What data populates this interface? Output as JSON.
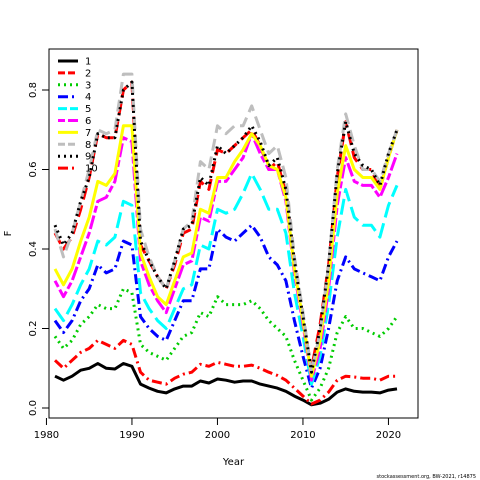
{
  "chart_data": {
    "type": "line",
    "title": "",
    "xlabel": "Year",
    "ylabel": "F",
    "xlim": [
      1980,
      2021
    ],
    "ylim": [
      0,
      0.85
    ],
    "x_ticks": [
      1980,
      1990,
      2000,
      2010,
      2020
    ],
    "y_ticks": [
      0.0,
      0.2,
      0.4,
      0.6,
      0.8
    ],
    "x_tick_labels": [
      "1980",
      "1990",
      "2000",
      "2010",
      "2020"
    ],
    "y_tick_labels": [
      "0.0",
      "0.2",
      "0.4",
      "0.6",
      "0.8"
    ],
    "grid": false,
    "legend_position": "top-left",
    "credit": "stockassessment.org, BW-2021, r14875",
    "x": [
      1981,
      1982,
      1983,
      1984,
      1985,
      1986,
      1987,
      1988,
      1989,
      1990,
      1991,
      1992,
      1993,
      1994,
      1995,
      1996,
      1997,
      1998,
      1999,
      2000,
      2001,
      2002,
      2003,
      2004,
      2005,
      2006,
      2007,
      2008,
      2009,
      2010,
      2011,
      2012,
      2013,
      2014,
      2015,
      2016,
      2017,
      2018,
      2019,
      2020,
      2021
    ],
    "series": [
      {
        "name": "1",
        "color": "#000000",
        "dash": "solid",
        "values": [
          0.08,
          0.07,
          0.08,
          0.095,
          0.1,
          0.112,
          0.1,
          0.098,
          0.112,
          0.105,
          0.06,
          0.05,
          0.042,
          0.038,
          0.048,
          0.055,
          0.055,
          0.068,
          0.063,
          0.073,
          0.07,
          0.065,
          0.068,
          0.068,
          0.06,
          0.055,
          0.05,
          0.042,
          0.03,
          0.02,
          0.008,
          0.012,
          0.022,
          0.04,
          0.048,
          0.042,
          0.04,
          0.04,
          0.038,
          0.045,
          0.048
        ]
      },
      {
        "name": "2",
        "color": "#ff0000",
        "dash": "dashed",
        "values": [
          0.44,
          0.4,
          0.43,
          0.5,
          0.58,
          0.69,
          0.68,
          0.68,
          0.8,
          0.82,
          0.41,
          0.37,
          0.33,
          0.3,
          0.36,
          0.44,
          0.45,
          0.57,
          0.55,
          0.65,
          0.64,
          0.66,
          0.68,
          0.7,
          0.66,
          0.6,
          0.62,
          0.54,
          0.36,
          0.22,
          0.1,
          0.21,
          0.36,
          0.58,
          0.72,
          0.63,
          0.6,
          0.6,
          0.55,
          0.63,
          0.7
        ]
      },
      {
        "name": "3",
        "color": "#00cc00",
        "dash": "dotted",
        "values": [
          0.18,
          0.15,
          0.17,
          0.21,
          0.23,
          0.26,
          0.25,
          0.25,
          0.3,
          0.29,
          0.16,
          0.14,
          0.13,
          0.12,
          0.15,
          0.18,
          0.19,
          0.24,
          0.23,
          0.28,
          0.26,
          0.26,
          0.26,
          0.27,
          0.25,
          0.22,
          0.2,
          0.18,
          0.12,
          0.07,
          0.02,
          0.05,
          0.1,
          0.19,
          0.23,
          0.2,
          0.2,
          0.19,
          0.18,
          0.2,
          0.23
        ]
      },
      {
        "name": "4",
        "color": "#0000ff",
        "dash": "dashdot",
        "values": [
          0.22,
          0.19,
          0.22,
          0.27,
          0.3,
          0.36,
          0.34,
          0.35,
          0.42,
          0.41,
          0.23,
          0.2,
          0.18,
          0.17,
          0.22,
          0.27,
          0.27,
          0.35,
          0.35,
          0.45,
          0.43,
          0.42,
          0.44,
          0.46,
          0.43,
          0.38,
          0.36,
          0.32,
          0.22,
          0.13,
          0.05,
          0.1,
          0.2,
          0.32,
          0.38,
          0.35,
          0.34,
          0.33,
          0.32,
          0.38,
          0.42
        ]
      },
      {
        "name": "5",
        "color": "#00ffff",
        "dash": "longdash",
        "values": [
          0.25,
          0.22,
          0.26,
          0.31,
          0.35,
          0.42,
          0.41,
          0.43,
          0.52,
          0.51,
          0.29,
          0.25,
          0.22,
          0.2,
          0.25,
          0.3,
          0.31,
          0.41,
          0.4,
          0.5,
          0.49,
          0.5,
          0.54,
          0.59,
          0.55,
          0.5,
          0.5,
          0.44,
          0.29,
          0.18,
          0.06,
          0.13,
          0.26,
          0.43,
          0.55,
          0.48,
          0.46,
          0.46,
          0.43,
          0.51,
          0.56
        ]
      },
      {
        "name": "6",
        "color": "#ff00ff",
        "dash": "twodash",
        "values": [
          0.32,
          0.28,
          0.32,
          0.38,
          0.44,
          0.52,
          0.53,
          0.57,
          0.68,
          0.67,
          0.37,
          0.31,
          0.27,
          0.24,
          0.3,
          0.36,
          0.37,
          0.48,
          0.47,
          0.57,
          0.57,
          0.6,
          0.63,
          0.69,
          0.64,
          0.6,
          0.6,
          0.52,
          0.34,
          0.21,
          0.07,
          0.15,
          0.3,
          0.51,
          0.63,
          0.57,
          0.56,
          0.56,
          0.53,
          0.58,
          0.64
        ]
      },
      {
        "name": "7",
        "color": "#ffff00",
        "dash": "solid",
        "values": [
          0.35,
          0.31,
          0.35,
          0.42,
          0.48,
          0.57,
          0.56,
          0.59,
          0.71,
          0.71,
          0.39,
          0.33,
          0.28,
          0.26,
          0.32,
          0.38,
          0.39,
          0.5,
          0.49,
          0.58,
          0.58,
          0.62,
          0.65,
          0.69,
          0.66,
          0.61,
          0.6,
          0.53,
          0.35,
          0.22,
          0.08,
          0.17,
          0.32,
          0.54,
          0.66,
          0.6,
          0.58,
          0.58,
          0.55,
          0.63,
          0.7
        ]
      },
      {
        "name": "8",
        "color": "#bebebe",
        "dash": "dashed",
        "values": [
          0.45,
          0.38,
          0.44,
          0.52,
          0.6,
          0.7,
          0.69,
          0.7,
          0.84,
          0.84,
          0.45,
          0.38,
          0.33,
          0.3,
          0.37,
          0.45,
          0.47,
          0.62,
          0.6,
          0.71,
          0.69,
          0.71,
          0.71,
          0.76,
          0.7,
          0.64,
          0.66,
          0.58,
          0.38,
          0.24,
          0.09,
          0.19,
          0.36,
          0.6,
          0.74,
          0.66,
          0.6,
          0.6,
          0.57,
          0.64,
          0.7
        ]
      },
      {
        "name": "9",
        "color": "#000000",
        "dash": "dotted",
        "values": [
          0.46,
          0.41,
          0.44,
          0.52,
          0.58,
          0.69,
          0.68,
          0.68,
          0.8,
          0.82,
          0.42,
          0.37,
          0.33,
          0.3,
          0.37,
          0.45,
          0.46,
          0.58,
          0.56,
          0.66,
          0.64,
          0.66,
          0.68,
          0.71,
          0.67,
          0.61,
          0.63,
          0.55,
          0.37,
          0.23,
          0.09,
          0.2,
          0.36,
          0.59,
          0.72,
          0.64,
          0.61,
          0.6,
          0.56,
          0.64,
          0.7
        ]
      },
      {
        "name": "10",
        "color": "#ff0000",
        "dash": "dashdot",
        "values": [
          0.12,
          0.1,
          0.12,
          0.14,
          0.15,
          0.17,
          0.16,
          0.15,
          0.17,
          0.16,
          0.09,
          0.07,
          0.065,
          0.06,
          0.075,
          0.085,
          0.09,
          0.11,
          0.105,
          0.115,
          0.11,
          0.105,
          0.105,
          0.108,
          0.1,
          0.09,
          0.082,
          0.07,
          0.05,
          0.03,
          0.01,
          0.02,
          0.04,
          0.07,
          0.08,
          0.078,
          0.075,
          0.075,
          0.07,
          0.08,
          0.08
        ]
      }
    ]
  }
}
